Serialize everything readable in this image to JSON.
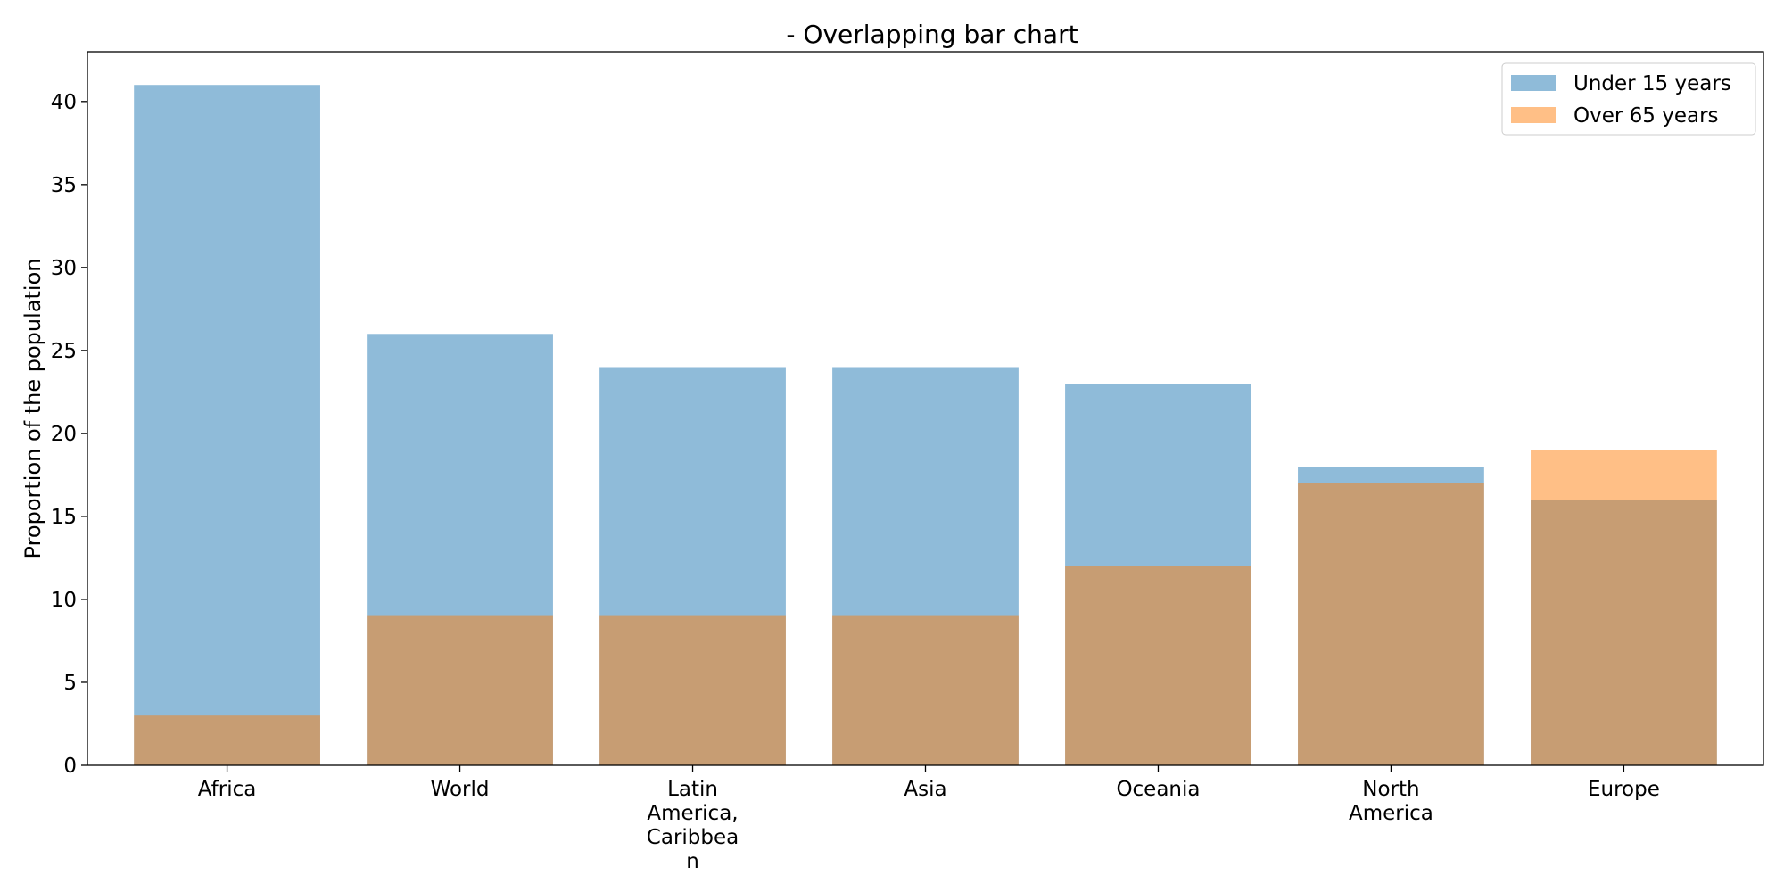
{
  "chart_data": {
    "type": "bar",
    "title": "- Overlapping bar chart",
    "xlabel": "",
    "ylabel": "Proportion of the population",
    "categories": [
      "Africa",
      "World",
      "Latin America, Caribbean",
      "Asia",
      "Oceania",
      "North America",
      "Europe"
    ],
    "category_label_lines": [
      [
        "Africa"
      ],
      [
        "World"
      ],
      [
        "Latin",
        "America,",
        "Caribbea",
        "n"
      ],
      [
        "Asia"
      ],
      [
        "Oceania"
      ],
      [
        "North",
        "America"
      ],
      [
        "Europe"
      ]
    ],
    "series": [
      {
        "name": "Under 15 years",
        "values": [
          41,
          26,
          24,
          24,
          23,
          18,
          16
        ],
        "color": "#1f77b4",
        "alpha": 0.5
      },
      {
        "name": "Over 65 years",
        "values": [
          3,
          9,
          9,
          9,
          12,
          17,
          19
        ],
        "color": "#ff7f0e",
        "alpha": 0.5
      }
    ],
    "ylim": [
      0,
      43
    ],
    "yticks": [
      0,
      5,
      10,
      15,
      20,
      25,
      30,
      35,
      40
    ],
    "grid": false,
    "legend_position": "top-right",
    "overlap": true
  }
}
